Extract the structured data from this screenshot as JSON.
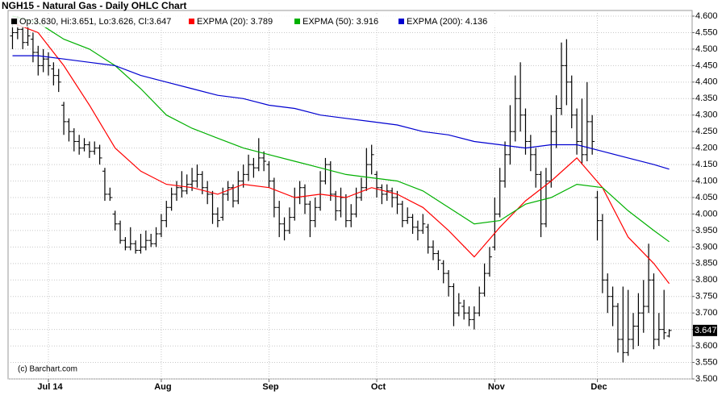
{
  "chart_data": {
    "type": "ohlc",
    "title": "NGH15 - Natural Gas - Daily OHLC Chart",
    "credit": "(c) Barchart.com",
    "grid": true,
    "ylim": [
      3.5,
      4.6
    ],
    "yticks": [
      {
        "value": 3.5,
        "label": "3.500"
      },
      {
        "value": 3.55,
        "label": "3.550"
      },
      {
        "value": 3.6,
        "label": "3.600"
      },
      {
        "value": 3.65,
        "label": "3.650"
      },
      {
        "value": 3.7,
        "label": "3.700"
      },
      {
        "value": 3.75,
        "label": "3.750"
      },
      {
        "value": 3.8,
        "label": "3.800"
      },
      {
        "value": 3.85,
        "label": "3.850"
      },
      {
        "value": 3.9,
        "label": "3.900"
      },
      {
        "value": 3.95,
        "label": "3.950"
      },
      {
        "value": 4.0,
        "label": "4.000"
      },
      {
        "value": 4.05,
        "label": "4.050"
      },
      {
        "value": 4.1,
        "label": "4.100"
      },
      {
        "value": 4.15,
        "label": "4.150"
      },
      {
        "value": 4.2,
        "label": "4.200"
      },
      {
        "value": 4.25,
        "label": "4.250"
      },
      {
        "value": 4.3,
        "label": "4.300"
      },
      {
        "value": 4.35,
        "label": "4.350"
      },
      {
        "value": 4.4,
        "label": "4.400"
      },
      {
        "value": 4.45,
        "label": "4.450"
      },
      {
        "value": 4.5,
        "label": "4.500"
      },
      {
        "value": 4.55,
        "label": "4.550"
      },
      {
        "value": 4.6,
        "label": "4.600"
      }
    ],
    "categories": [
      null,
      null,
      null,
      null,
      null,
      null,
      null,
      "Jul 14",
      null,
      null,
      null,
      null,
      null,
      null,
      null,
      null,
      null,
      null,
      null,
      null,
      null,
      null,
      null,
      null,
      null,
      null,
      null,
      null,
      null,
      "Aug",
      null,
      null,
      null,
      null,
      null,
      null,
      null,
      null,
      null,
      null,
      null,
      null,
      null,
      null,
      null,
      null,
      null,
      null,
      null,
      null,
      "Sep",
      null,
      null,
      null,
      null,
      null,
      null,
      null,
      null,
      null,
      null,
      null,
      null,
      null,
      null,
      null,
      null,
      null,
      null,
      null,
      null,
      "Oct",
      null,
      null,
      null,
      null,
      null,
      null,
      null,
      null,
      null,
      null,
      null,
      null,
      null,
      null,
      null,
      null,
      null,
      null,
      null,
      null,
      null,
      null,
      "Nov",
      null,
      null,
      null,
      null,
      null,
      null,
      null,
      null,
      null,
      null,
      null,
      null,
      null,
      null,
      null,
      null,
      null,
      null,
      null,
      "Dec",
      null,
      null,
      null,
      null,
      null,
      null,
      null,
      null,
      null,
      null,
      null,
      null,
      null,
      null
    ],
    "price": {
      "name": "Op:3.630, Hi:3.651, Lo:3.626, Cl:3.647",
      "color": "#000000",
      "open": [
        4.54,
        4.55,
        4.56,
        4.52,
        4.53,
        4.49,
        4.45,
        4.47,
        4.44,
        4.42,
        4.33,
        4.28,
        4.25,
        4.22,
        4.2,
        4.21,
        4.19,
        4.2,
        4.13,
        4.06,
        4.0,
        3.97,
        3.92,
        3.9,
        3.91,
        3.89,
        3.9,
        3.92,
        3.91,
        3.94,
        3.98,
        4.02,
        4.06,
        4.08,
        4.07,
        4.09,
        4.1,
        4.12,
        4.08,
        4.06,
        4.0,
        3.99,
        4.06,
        4.08,
        4.04,
        4.1,
        4.12,
        4.15,
        4.14,
        4.17,
        4.15,
        4.1,
        4.02,
        3.97,
        3.95,
        3.99,
        4.05,
        4.08,
        4.03,
        3.98,
        4.02,
        4.1,
        4.15,
        4.06,
        4.01,
        4.05,
        3.98,
        4.0,
        4.05,
        4.08,
        4.15,
        4.12,
        4.08,
        4.06,
        4.07,
        4.05,
        4.03,
        3.98,
        3.99,
        3.96,
        3.95,
        3.96,
        3.9,
        3.88,
        3.85,
        3.82,
        3.78,
        3.7,
        3.72,
        3.7,
        3.68,
        3.7,
        3.76,
        3.82,
        3.9,
        4.0,
        4.1,
        4.18,
        4.25,
        4.35,
        4.3,
        4.22,
        4.18,
        4.12,
        3.97,
        4.1,
        4.25,
        4.32,
        4.45,
        4.4,
        4.3,
        4.22,
        4.18,
        4.28,
        4.05,
        3.98,
        3.8,
        3.75,
        3.72,
        3.62,
        3.58,
        3.62,
        3.66,
        3.7,
        3.72,
        3.8,
        3.62,
        3.65,
        3.63
      ],
      "high": [
        4.58,
        4.6,
        4.57,
        4.57,
        4.55,
        4.51,
        4.5,
        4.49,
        4.46,
        4.44,
        4.34,
        4.29,
        4.26,
        4.24,
        4.23,
        4.22,
        4.22,
        4.21,
        4.14,
        4.08,
        4.01,
        3.98,
        3.93,
        3.96,
        3.92,
        3.94,
        3.95,
        3.94,
        3.96,
        4.0,
        4.04,
        4.08,
        4.1,
        4.13,
        4.12,
        4.14,
        4.15,
        4.13,
        4.1,
        4.07,
        4.02,
        4.08,
        4.1,
        4.09,
        4.13,
        4.15,
        4.18,
        4.17,
        4.23,
        4.19,
        4.16,
        4.11,
        4.04,
        3.99,
        4.02,
        4.08,
        4.1,
        4.09,
        4.04,
        4.05,
        4.13,
        4.17,
        4.16,
        4.07,
        4.08,
        4.06,
        4.03,
        4.08,
        4.11,
        4.2,
        4.21,
        4.13,
        4.09,
        4.09,
        4.08,
        4.07,
        4.04,
        4.02,
        4.0,
        3.98,
        4.0,
        3.97,
        3.92,
        3.89,
        3.86,
        3.83,
        3.79,
        3.76,
        3.74,
        3.72,
        3.72,
        3.78,
        3.85,
        3.9,
        4.05,
        4.14,
        4.22,
        4.33,
        4.42,
        4.46,
        4.32,
        4.24,
        4.2,
        4.13,
        4.14,
        4.3,
        4.36,
        4.52,
        4.53,
        4.42,
        4.32,
        4.35,
        4.4,
        4.3,
        4.07,
        4.0,
        3.82,
        3.78,
        3.73,
        3.78,
        3.77,
        3.7,
        3.76,
        3.8,
        3.91,
        3.82,
        3.7,
        3.77,
        3.651
      ],
      "low": [
        4.5,
        4.53,
        4.5,
        4.51,
        4.46,
        4.42,
        4.43,
        4.42,
        4.39,
        4.37,
        4.24,
        4.22,
        4.19,
        4.18,
        4.19,
        4.17,
        4.18,
        4.15,
        4.04,
        4.04,
        3.95,
        3.91,
        3.89,
        3.89,
        3.88,
        3.88,
        3.89,
        3.9,
        3.9,
        3.93,
        3.96,
        4.01,
        4.04,
        4.05,
        4.06,
        4.07,
        4.08,
        4.06,
        4.03,
        3.97,
        3.96,
        3.98,
        4.04,
        4.02,
        4.03,
        4.08,
        4.1,
        4.11,
        4.13,
        4.13,
        4.08,
        3.99,
        3.93,
        3.92,
        3.94,
        3.98,
        4.03,
        4.0,
        3.93,
        3.96,
        4.01,
        4.09,
        4.04,
        3.98,
        3.99,
        3.96,
        3.96,
        3.99,
        4.04,
        4.07,
        4.12,
        4.05,
        4.03,
        4.04,
        4.02,
        4.0,
        3.96,
        3.97,
        3.94,
        3.92,
        3.94,
        3.88,
        3.86,
        3.83,
        3.79,
        3.75,
        3.66,
        3.69,
        3.68,
        3.66,
        3.65,
        3.69,
        3.75,
        3.81,
        3.89,
        3.99,
        4.08,
        4.15,
        4.22,
        4.25,
        4.18,
        4.13,
        4.08,
        3.93,
        3.96,
        4.08,
        4.2,
        4.3,
        4.33,
        4.26,
        4.18,
        4.15,
        4.16,
        4.18,
        3.92,
        3.76,
        3.7,
        3.66,
        3.58,
        3.55,
        3.57,
        3.59,
        3.6,
        3.64,
        3.7,
        3.59,
        3.6,
        3.62,
        3.626
      ],
      "close": [
        4.55,
        4.56,
        4.52,
        4.54,
        4.49,
        4.45,
        4.47,
        4.45,
        4.42,
        4.4,
        4.28,
        4.25,
        4.22,
        4.2,
        4.21,
        4.19,
        4.2,
        4.17,
        4.06,
        4.05,
        3.97,
        3.92,
        3.9,
        3.91,
        3.89,
        3.9,
        3.92,
        3.91,
        3.94,
        3.98,
        4.02,
        4.06,
        4.08,
        4.07,
        4.09,
        4.1,
        4.12,
        4.08,
        4.06,
        4.0,
        3.98,
        4.06,
        4.08,
        4.04,
        4.1,
        4.12,
        4.15,
        4.14,
        4.17,
        4.16,
        4.1,
        4.02,
        3.97,
        3.95,
        3.99,
        4.05,
        4.08,
        4.03,
        3.98,
        4.02,
        4.1,
        4.15,
        4.06,
        4.01,
        4.05,
        3.98,
        4.0,
        4.05,
        4.08,
        4.15,
        4.18,
        4.08,
        4.06,
        4.07,
        4.05,
        4.03,
        3.98,
        3.99,
        3.96,
        3.95,
        3.97,
        3.9,
        3.88,
        3.86,
        3.82,
        3.78,
        3.7,
        3.73,
        3.7,
        3.68,
        3.7,
        3.76,
        3.82,
        3.87,
        4.0,
        4.1,
        4.18,
        4.25,
        4.35,
        4.3,
        4.22,
        4.18,
        4.12,
        3.97,
        4.1,
        4.25,
        4.32,
        4.45,
        4.4,
        4.3,
        4.22,
        4.18,
        4.28,
        4.22,
        3.98,
        3.8,
        3.75,
        3.72,
        3.62,
        3.58,
        3.62,
        3.66,
        3.7,
        3.72,
        3.8,
        3.62,
        3.65,
        3.64,
        3.647
      ]
    },
    "series": [
      {
        "name": "EXPMA (20): 3.789",
        "color": "#ff0000",
        "x": [
          0,
          5,
          10,
          15,
          20,
          25,
          30,
          35,
          40,
          45,
          50,
          55,
          60,
          65,
          70,
          75,
          80,
          85,
          90,
          95,
          100,
          105,
          110,
          115,
          120,
          125,
          128
        ],
        "values": [
          4.58,
          4.55,
          4.45,
          4.33,
          4.2,
          4.13,
          4.09,
          4.08,
          4.06,
          4.09,
          4.08,
          4.05,
          4.06,
          4.05,
          4.08,
          4.06,
          4.02,
          3.95,
          3.87,
          3.96,
          4.04,
          4.1,
          4.17,
          4.08,
          3.93,
          3.85,
          3.789
        ]
      },
      {
        "name": "EXPMA (50): 3.916",
        "color": "#00b000",
        "x": [
          0,
          5,
          10,
          15,
          20,
          25,
          30,
          35,
          40,
          45,
          50,
          55,
          60,
          65,
          70,
          75,
          80,
          85,
          90,
          95,
          100,
          105,
          110,
          115,
          120,
          125,
          128
        ],
        "values": [
          4.6,
          4.58,
          4.53,
          4.5,
          4.45,
          4.38,
          4.3,
          4.26,
          4.23,
          4.2,
          4.18,
          4.16,
          4.14,
          4.12,
          4.11,
          4.1,
          4.07,
          4.02,
          3.97,
          3.98,
          4.03,
          4.05,
          4.09,
          4.08,
          4.01,
          3.95,
          3.916
        ]
      },
      {
        "name": "EXPMA (200): 4.136",
        "color": "#0000d0",
        "x": [
          0,
          5,
          10,
          15,
          20,
          25,
          30,
          35,
          40,
          45,
          50,
          55,
          60,
          65,
          70,
          75,
          80,
          85,
          90,
          95,
          100,
          105,
          110,
          115,
          120,
          125,
          128
        ],
        "values": [
          4.48,
          4.48,
          4.47,
          4.46,
          4.45,
          4.42,
          4.4,
          4.38,
          4.36,
          4.35,
          4.33,
          4.32,
          4.3,
          4.29,
          4.28,
          4.27,
          4.25,
          4.24,
          4.22,
          4.21,
          4.2,
          4.21,
          4.21,
          4.19,
          4.17,
          4.15,
          4.136
        ]
      }
    ]
  }
}
